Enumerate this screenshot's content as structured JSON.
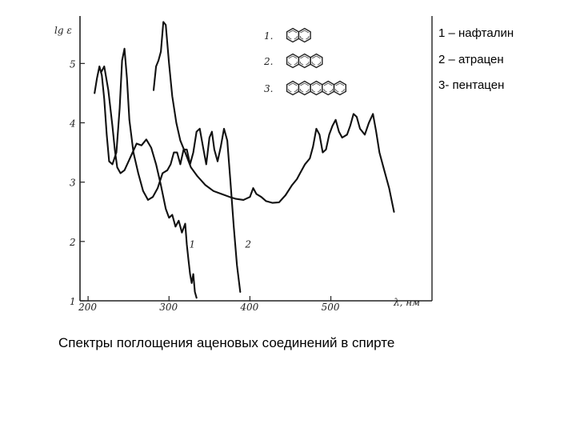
{
  "legend": {
    "item1": "1 – нафталин",
    "item2": "2 – атрацен",
    "item3": "3- пентацен"
  },
  "caption": "Спектры поглощения аценовых соединений в спирте",
  "structure_labels": [
    "1.",
    "2.",
    "3."
  ],
  "chart_data": {
    "type": "line",
    "title": "",
    "xlabel": "λ, нм",
    "ylabel": "lg ε",
    "xlim": [
      190,
      625
    ],
    "ylim": [
      1,
      5.8
    ],
    "x_ticks": [
      200,
      300,
      400,
      500
    ],
    "x_tick_labels": [
      "200",
      "300",
      "400",
      "500"
    ],
    "y_ticks": [
      1,
      2,
      3,
      4,
      5
    ],
    "y_tick_labels": [
      "1",
      "2",
      "3",
      "4",
      "5"
    ],
    "grid": false,
    "curve_labels": [
      {
        "text": "1",
        "x": 325,
        "y": 1.9
      },
      {
        "text": "2",
        "x": 394,
        "y": 1.9
      }
    ],
    "series": [
      {
        "name": "1",
        "points": [
          [
            216,
            4.85
          ],
          [
            220,
            4.95
          ],
          [
            225,
            4.55
          ],
          [
            230,
            3.95
          ],
          [
            233,
            3.55
          ],
          [
            236,
            3.25
          ],
          [
            240,
            3.15
          ],
          [
            245,
            3.2
          ],
          [
            250,
            3.35
          ],
          [
            255,
            3.5
          ],
          [
            260,
            3.65
          ],
          [
            266,
            3.62
          ],
          [
            272,
            3.72
          ],
          [
            278,
            3.58
          ],
          [
            284,
            3.3
          ],
          [
            290,
            2.95
          ],
          [
            296,
            2.55
          ],
          [
            300,
            2.4
          ],
          [
            304,
            2.45
          ],
          [
            308,
            2.25
          ],
          [
            312,
            2.35
          ],
          [
            316,
            2.15
          ],
          [
            320,
            2.3
          ],
          [
            322,
            1.95
          ],
          [
            324,
            1.7
          ],
          [
            326,
            1.45
          ],
          [
            328,
            1.3
          ],
          [
            330,
            1.45
          ],
          [
            332,
            1.15
          ],
          [
            334,
            1.05
          ]
        ]
      },
      {
        "name": "2",
        "points": [
          [
            208,
            4.5
          ],
          [
            211,
            4.75
          ],
          [
            214,
            4.95
          ],
          [
            217,
            4.8
          ],
          [
            220,
            4.4
          ],
          [
            223,
            3.8
          ],
          [
            226,
            3.35
          ],
          [
            230,
            3.3
          ],
          [
            235,
            3.5
          ],
          [
            239,
            4.25
          ],
          [
            242,
            5.05
          ],
          [
            245,
            5.25
          ],
          [
            248,
            4.75
          ],
          [
            251,
            4.05
          ],
          [
            256,
            3.5
          ],
          [
            262,
            3.15
          ],
          [
            268,
            2.85
          ],
          [
            274,
            2.7
          ],
          [
            280,
            2.75
          ],
          [
            286,
            2.9
          ],
          [
            292,
            3.15
          ],
          [
            298,
            3.2
          ],
          [
            302,
            3.3
          ],
          [
            306,
            3.5
          ],
          [
            310,
            3.5
          ],
          [
            314,
            3.3
          ],
          [
            318,
            3.55
          ],
          [
            322,
            3.55
          ],
          [
            326,
            3.3
          ],
          [
            330,
            3.5
          ],
          [
            334,
            3.85
          ],
          [
            338,
            3.9
          ],
          [
            342,
            3.6
          ],
          [
            346,
            3.3
          ],
          [
            350,
            3.75
          ],
          [
            353,
            3.85
          ],
          [
            356,
            3.55
          ],
          [
            360,
            3.35
          ],
          [
            364,
            3.6
          ],
          [
            368,
            3.9
          ],
          [
            372,
            3.7
          ],
          [
            376,
            3.0
          ],
          [
            380,
            2.25
          ],
          [
            384,
            1.6
          ],
          [
            388,
            1.15
          ]
        ]
      },
      {
        "name": "3",
        "points": [
          [
            281,
            4.55
          ],
          [
            284,
            4.95
          ],
          [
            287,
            5.05
          ],
          [
            290,
            5.2
          ],
          [
            293,
            5.7
          ],
          [
            296,
            5.65
          ],
          [
            300,
            5.0
          ],
          [
            304,
            4.45
          ],
          [
            309,
            4.0
          ],
          [
            314,
            3.7
          ],
          [
            320,
            3.5
          ],
          [
            327,
            3.25
          ],
          [
            335,
            3.1
          ],
          [
            345,
            2.95
          ],
          [
            355,
            2.85
          ],
          [
            365,
            2.8
          ],
          [
            375,
            2.75
          ],
          [
            382,
            2.72
          ],
          [
            392,
            2.7
          ],
          [
            400,
            2.75
          ],
          [
            404,
            2.9
          ],
          [
            408,
            2.8
          ],
          [
            414,
            2.75
          ],
          [
            420,
            2.68
          ],
          [
            428,
            2.65
          ],
          [
            436,
            2.66
          ],
          [
            444,
            2.78
          ],
          [
            452,
            2.95
          ],
          [
            458,
            3.05
          ],
          [
            462,
            3.15
          ],
          [
            468,
            3.3
          ],
          [
            474,
            3.4
          ],
          [
            478,
            3.6
          ],
          [
            482,
            3.9
          ],
          [
            486,
            3.8
          ],
          [
            490,
            3.5
          ],
          [
            494,
            3.55
          ],
          [
            498,
            3.8
          ],
          [
            502,
            3.95
          ],
          [
            506,
            4.05
          ],
          [
            510,
            3.85
          ],
          [
            514,
            3.75
          ],
          [
            520,
            3.8
          ],
          [
            524,
            3.95
          ],
          [
            528,
            4.15
          ],
          [
            532,
            4.1
          ],
          [
            536,
            3.9
          ],
          [
            542,
            3.8
          ],
          [
            547,
            4.0
          ],
          [
            552,
            4.15
          ],
          [
            556,
            3.85
          ],
          [
            560,
            3.5
          ],
          [
            566,
            3.2
          ],
          [
            572,
            2.9
          ],
          [
            578,
            2.5
          ]
        ]
      }
    ]
  }
}
